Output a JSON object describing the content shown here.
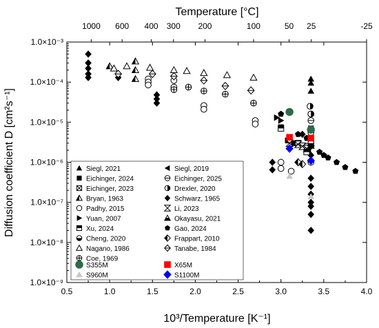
{
  "chart_data": {
    "type": "scatter",
    "title": "",
    "xlabel": "10³/Temperature [K⁻¹]",
    "ylabel": "Diffusion coefficient D [cm²s⁻¹]",
    "top_xlabel": "Temperature [°C]",
    "xlim": [
      0.5,
      4.0
    ],
    "ylim_log10": [
      -9,
      -3
    ],
    "yscale": "log",
    "grid": false,
    "legend_position": "bottom-left",
    "x_ticks": [
      "0.5",
      "1.0",
      "1.5",
      "2.0",
      "2.5",
      "3.0",
      "3.5",
      "4.0"
    ],
    "y_ticks": [
      {
        "exp": -3,
        "label": "1.0×10⁻³"
      },
      {
        "exp": -4,
        "label": "1.0×10⁻⁴"
      },
      {
        "exp": -5,
        "label": "1.0×10⁻⁵"
      },
      {
        "exp": -6,
        "label": "1.0×10⁻⁶"
      },
      {
        "exp": -7,
        "label": "1.0×10⁻⁷"
      },
      {
        "exp": -8,
        "label": "1.0×10⁻⁸"
      },
      {
        "exp": -9,
        "label": "1.0×10⁻⁹"
      }
    ],
    "top_ticks": [
      {
        "label": "1000",
        "x": 0.785
      },
      {
        "label": "600",
        "x": 1.145
      },
      {
        "label": "400",
        "x": 1.486
      },
      {
        "label": "300",
        "x": 1.745
      },
      {
        "label": "200",
        "x": 2.113
      },
      {
        "label": "100",
        "x": 2.68
      },
      {
        "label": "50",
        "x": 3.095
      },
      {
        "label": "25",
        "x": 3.354
      },
      {
        "label": "-25",
        "x": 4.0
      }
    ],
    "series": [
      {
        "name": "Siegl, 2021",
        "marker": "tri-up-filled",
        "points": [
          [
            3.35,
            0.00012
          ],
          [
            3.35,
            9.5e-05
          ],
          [
            3.35,
            6e-05
          ]
        ]
      },
      {
        "name": "Siegl, 2019",
        "marker": "tri-left-filled",
        "points": [
          [
            3.3,
            2.5e-06
          ],
          [
            3.32,
            2e-06
          ]
        ]
      },
      {
        "name": "Eichinger, 2024",
        "marker": "square-filled",
        "points": [
          [
            3.0,
            7.5e-06
          ],
          [
            3.08,
            3.5e-06
          ],
          [
            3.15,
            3e-06
          ],
          [
            3.35,
            7e-06
          ]
        ]
      },
      {
        "name": "Eichinger, 2025",
        "marker": "circle-hline",
        "points": [
          [
            3.35,
            1e-06
          ],
          [
            3.35,
            1.1e-05
          ],
          [
            3.35,
            1.6e-05
          ],
          [
            3.35,
            5.5e-06
          ]
        ]
      },
      {
        "name": "Eichinger, 2023",
        "marker": "square-x",
        "points": [
          [
            3.2,
            3e-06
          ],
          [
            3.3,
            2.5e-06
          ]
        ]
      },
      {
        "name": "Drexler, 2020",
        "marker": "circle-half-right",
        "points": [
          [
            3.34,
            2.5e-05
          ],
          [
            3.35,
            1.6e-05
          ]
        ]
      },
      {
        "name": "Bryan, 1963",
        "marker": "tri-half",
        "points": [
          [
            1.0,
            0.00025
          ],
          [
            1.3,
            0.00033
          ],
          [
            1.3,
            0.0002
          ],
          [
            1.3,
            0.00012
          ]
        ]
      },
      {
        "name": "Schwarz, 1965",
        "marker": "diamond-filled",
        "points": [
          [
            0.75,
            0.0005
          ],
          [
            0.75,
            0.0003
          ],
          [
            0.75,
            0.00022
          ],
          [
            0.75,
            0.00016
          ],
          [
            0.75,
            0.00013
          ],
          [
            1.1,
            0.00013
          ],
          [
            1.55,
            4.8e-05
          ],
          [
            1.55,
            3.8e-05
          ],
          [
            1.55,
            3e-05
          ],
          [
            2.9,
            1e-06
          ],
          [
            2.9,
            6.5e-07
          ],
          [
            3.0,
            1e-06
          ],
          [
            3.35,
            4e-07
          ],
          [
            3.35,
            2.5e-07
          ],
          [
            3.35,
            1.6e-07
          ],
          [
            3.35,
            1e-07
          ],
          [
            3.35,
            8e-08
          ],
          [
            3.35,
            5e-08
          ],
          [
            3.35,
            2e-08
          ],
          [
            3.35,
            2.5e-06
          ],
          [
            3.25,
            5e-06
          ],
          [
            3.35,
            1.5e-06
          ]
        ]
      },
      {
        "name": "Padhy, 2015",
        "marker": "circle-open",
        "points": [
          [
            1.45,
            0.00012
          ],
          [
            1.45,
            0.0001
          ],
          [
            1.45,
            8.5e-05
          ],
          [
            1.75,
            0.00011
          ],
          [
            1.75,
            7.5e-05
          ],
          [
            2.1,
            2.6e-05
          ],
          [
            2.1,
            2.1e-05
          ],
          [
            2.7,
            1.1e-05
          ],
          [
            2.7,
            9e-06
          ],
          [
            3.0,
            1e-06
          ],
          [
            3.0,
            7e-07
          ],
          [
            3.12,
            6e-07
          ]
        ]
      },
      {
        "name": "Li, 2023",
        "marker": "bowtie",
        "points": [
          [
            3.2,
            2.8e-06
          ],
          [
            3.25,
            2.5e-06
          ],
          [
            3.3,
            2.2e-06
          ],
          [
            3.1,
            3e-06
          ]
        ]
      },
      {
        "name": "Yuan, 2007",
        "marker": "tri-right-filled",
        "points": [
          [
            2.95,
            1.3e-05
          ],
          [
            3.0,
            1.1e-05
          ]
        ]
      },
      {
        "name": "Okayasu, 2021",
        "marker": "tri-quarter",
        "points": [
          [
            3.35,
            2.6e-06
          ],
          [
            3.35,
            3e-06
          ]
        ]
      },
      {
        "name": "Xu, 2024",
        "marker": "square-half",
        "points": [
          [
            3.0,
            7e-06
          ],
          [
            3.3,
            1.8e-06
          ]
        ]
      },
      {
        "name": "Gao, 2024",
        "marker": "pentagon-filled",
        "points": [
          [
            3.0,
            1.6e-05
          ],
          [
            3.2,
            5e-06
          ],
          [
            3.3,
            4e-06
          ],
          [
            3.45,
            1.8e-06
          ],
          [
            3.5,
            1.5e-06
          ],
          [
            3.55,
            1.3e-06
          ],
          [
            3.65,
            1e-06
          ],
          [
            3.75,
            7.5e-07
          ],
          [
            3.87,
            6e-07
          ]
        ]
      },
      {
        "name": "Cheng, 2020",
        "marker": "circle-half-bottom",
        "points": [
          [
            3.35,
            3.5e-06
          ],
          [
            3.35,
            3e-06
          ]
        ]
      },
      {
        "name": "Frappart, 2010",
        "marker": "diamond-half",
        "points": [
          [
            3.2,
            1e-06
          ],
          [
            3.25,
            9e-07
          ]
        ]
      },
      {
        "name": "Nagano, 1986",
        "marker": "tri-up-open",
        "points": [
          [
            1.05,
            0.00022
          ],
          [
            1.2,
            0.00025
          ],
          [
            1.47,
            0.00023
          ],
          [
            1.75,
            0.0002
          ],
          [
            1.9,
            0.00019
          ],
          [
            2.1,
            0.00017
          ],
          [
            2.37,
            0.00015
          ],
          [
            2.68,
            0.00013
          ]
        ]
      },
      {
        "name": "Tanabe, 1984",
        "marker": "diamond-hline",
        "points": [
          [
            1.1,
            0.00016
          ],
          [
            1.5,
            0.00016
          ],
          [
            1.75,
            0.00014
          ],
          [
            2.1,
            0.00011
          ],
          [
            2.35,
            8e-05
          ],
          [
            2.65,
            6.2e-05
          ]
        ]
      },
      {
        "name": "Coe, 1969",
        "marker": "circle-plus",
        "points": [
          [
            1.75,
            6.5e-05
          ],
          [
            1.92,
            7.5e-05
          ],
          [
            2.1,
            6e-05
          ],
          [
            2.35,
            5e-05
          ],
          [
            2.68,
            3e-05
          ]
        ]
      },
      {
        "name": "S355M",
        "marker": "circle-green",
        "points": [
          [
            3.1,
            1.8e-05
          ],
          [
            3.35,
            6.5e-06
          ]
        ]
      },
      {
        "name": "X65M",
        "marker": "square-red",
        "points": [
          [
            3.1,
            4.2e-06
          ],
          [
            3.35,
            4e-06
          ]
        ]
      },
      {
        "name": "S960M",
        "marker": "tri-grey",
        "points": [
          [
            3.1,
            4.5e-07
          ],
          [
            3.35,
            1.4e-07
          ]
        ]
      },
      {
        "name": "S1100M",
        "marker": "diamond-blue",
        "points": [
          [
            3.1,
            2.2e-06
          ],
          [
            3.35,
            1.1e-06
          ]
        ]
      }
    ]
  }
}
